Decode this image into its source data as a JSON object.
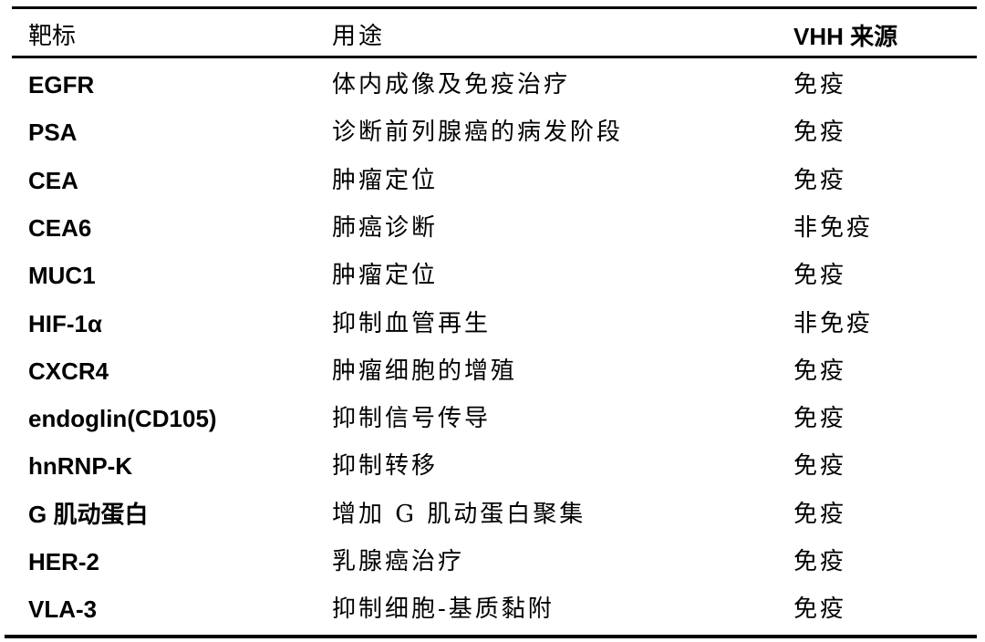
{
  "table": {
    "headers": [
      "靶标",
      "用途",
      "VHH 来源"
    ],
    "rows": [
      [
        "EGFR",
        "体内成像及免疫治疗",
        "免疫"
      ],
      [
        "PSA",
        "诊断前列腺癌的病发阶段",
        "免疫"
      ],
      [
        "CEA",
        "肿瘤定位",
        "免疫"
      ],
      [
        "CEA6",
        "肺癌诊断",
        "非免疫"
      ],
      [
        "MUC1",
        "肿瘤定位",
        "免疫"
      ],
      [
        "HIF-1α",
        "抑制血管再生",
        "非免疫"
      ],
      [
        "CXCR4",
        "肿瘤细胞的增殖",
        "免疫"
      ],
      [
        "endoglin(CD105)",
        "抑制信号传导",
        "免疫"
      ],
      [
        "hnRNP-K",
        "抑制转移",
        "免疫"
      ],
      [
        "G 肌动蛋白",
        "增加 G 肌动蛋白聚集",
        "免疫"
      ],
      [
        "HER-2",
        "乳腺癌治疗",
        "免疫"
      ],
      [
        "VLA-3",
        "抑制细胞-基质黏附",
        "免疫"
      ]
    ]
  }
}
